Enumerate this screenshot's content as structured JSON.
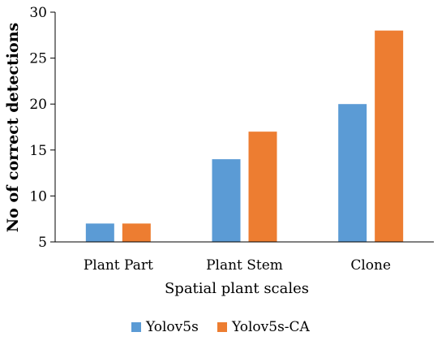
{
  "chart_data": {
    "type": "bar",
    "title": "",
    "categories": [
      "Plant Part",
      "Plant Stem",
      "Clone"
    ],
    "series": [
      {
        "name": "Yolov5s",
        "values": [
          7,
          14,
          20
        ],
        "color": "#5B9BD5"
      },
      {
        "name": "Yolov5s-CA",
        "values": [
          7,
          17,
          28
        ],
        "color": "#ED7D31"
      }
    ],
    "xlabel": "Spatial plant scales",
    "ylabel": "No of correct detections",
    "ylim": [
      5,
      30
    ],
    "yticks": [
      5,
      10,
      15,
      20,
      25,
      30
    ],
    "grid": false,
    "legend_position": "bottom"
  }
}
